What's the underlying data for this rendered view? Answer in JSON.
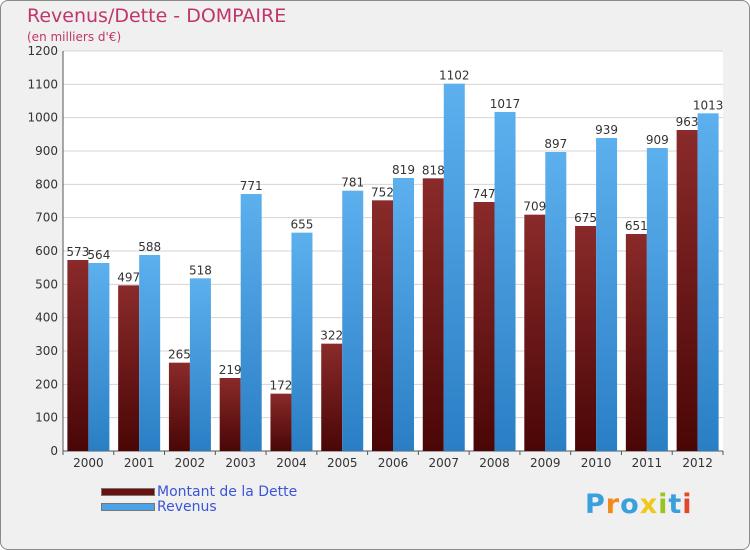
{
  "header": {
    "title": "Revenus/Dette - DOMPAIRE",
    "subtitle": "(en milliers d'€)"
  },
  "colors": {
    "dette": "#7a1616",
    "revenus": "#4aa3e8",
    "title": "#c0356b",
    "legend_text": "#3b55d6"
  },
  "chart_data": {
    "type": "bar",
    "title": "Revenus/Dette - DOMPAIRE",
    "subtitle": "(en milliers d'€)",
    "categories": [
      "2000",
      "2001",
      "2002",
      "2003",
      "2004",
      "2005",
      "2006",
      "2007",
      "2008",
      "2009",
      "2010",
      "2011",
      "2012"
    ],
    "series": [
      {
        "name": "Montant de la Dette",
        "values": [
          573,
          497,
          265,
          219,
          172,
          322,
          752,
          818,
          747,
          709,
          675,
          651,
          963
        ]
      },
      {
        "name": "Revenus",
        "values": [
          564,
          588,
          518,
          771,
          655,
          781,
          819,
          1102,
          1017,
          897,
          939,
          909,
          1013
        ]
      }
    ],
    "ylim": [
      0,
      1200
    ],
    "yticks": [
      0,
      100,
      200,
      300,
      400,
      500,
      600,
      700,
      800,
      900,
      1000,
      1100,
      1200
    ],
    "grid": true,
    "legend_position": "bottom-left"
  },
  "legend": {
    "items": [
      {
        "label": "Montant de la Dette"
      },
      {
        "label": "Revenus"
      }
    ]
  },
  "logo": {
    "letters": [
      "P",
      "r",
      "o",
      "x",
      "i",
      "t",
      "i"
    ],
    "colors": [
      "#3aa0dc",
      "#f08a1c",
      "#3aa0dc",
      "#f0c81c",
      "#9bc31f",
      "#3aa0dc",
      "#e0482a"
    ]
  }
}
